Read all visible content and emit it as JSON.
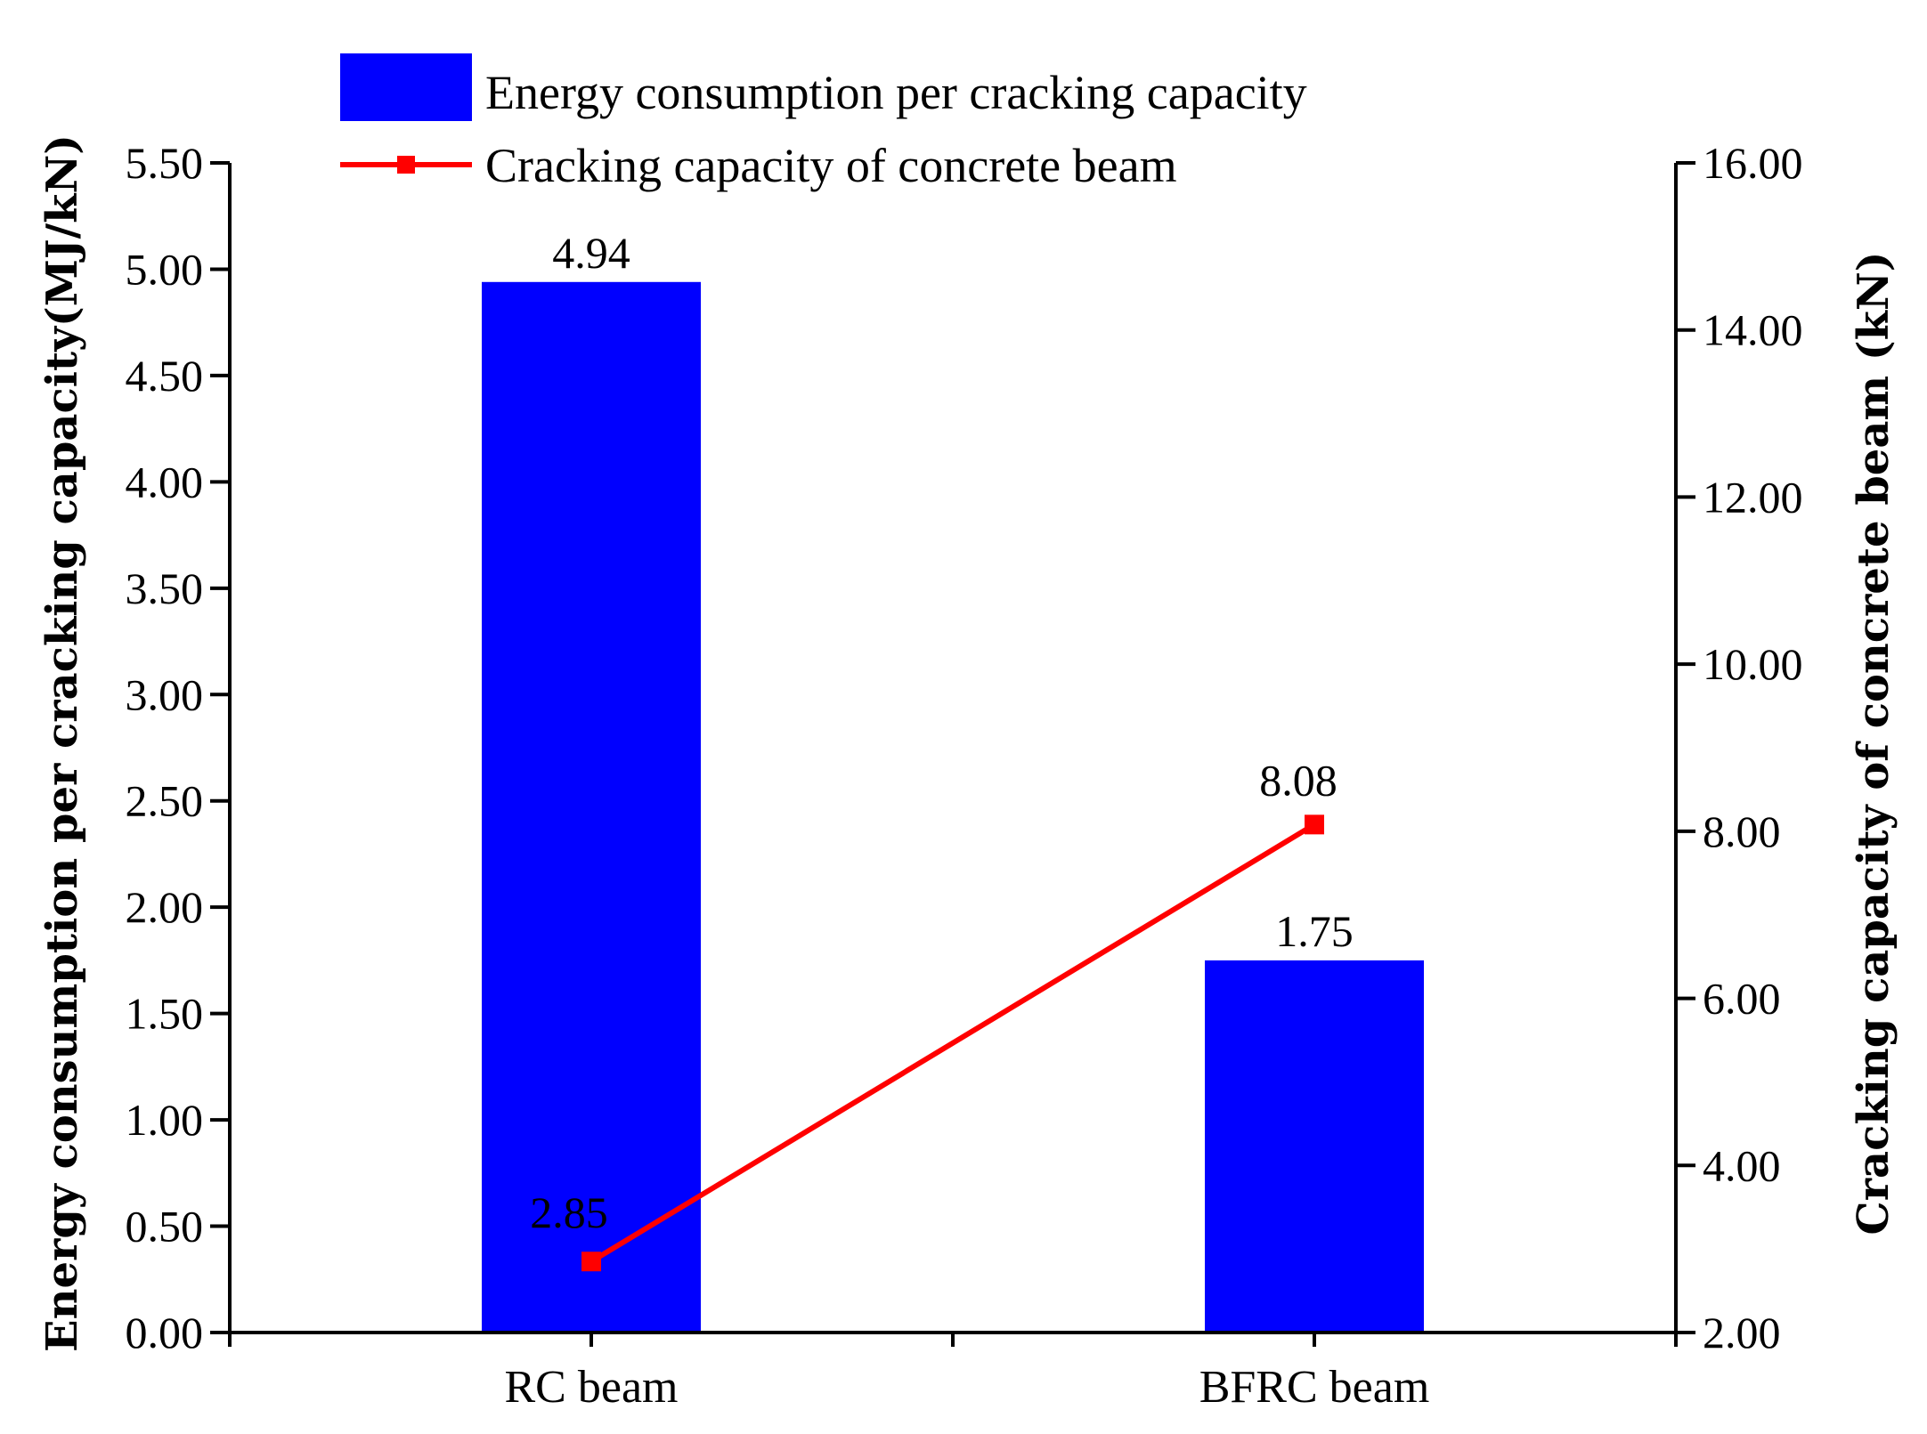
{
  "chart_data": {
    "type": "bar",
    "categories": [
      "RC beam",
      "BFRC beam"
    ],
    "series": [
      {
        "name": "Energy consumption per cracking capacity",
        "type": "bar",
        "axis": "left",
        "values": [
          4.94,
          1.75
        ],
        "labels": [
          "4.94",
          "1.75"
        ],
        "color": "#0000FF"
      },
      {
        "name": "Cracking capacity of concrete beam",
        "type": "line",
        "axis": "right",
        "values": [
          2.85,
          8.08
        ],
        "labels": [
          "2.85",
          "8.08"
        ],
        "color": "#FF0000",
        "marker": "square"
      }
    ],
    "ylabel": "Energy consumption per cracking capacity(MJ/kN)",
    "ylim": [
      0,
      5.5
    ],
    "yticks": [
      "0.00",
      "0.50",
      "1.00",
      "1.50",
      "2.00",
      "2.50",
      "3.00",
      "3.50",
      "4.00",
      "4.50",
      "5.00",
      "5.50"
    ],
    "y2label": "Cracking capacity of concrete beam (kN)",
    "y2lim": [
      2,
      16
    ],
    "y2ticks": [
      "2.00",
      "4.00",
      "6.00",
      "8.00",
      "10.00",
      "12.00",
      "14.00",
      "16.00"
    ],
    "grid": false,
    "legend_position": "top-left"
  }
}
